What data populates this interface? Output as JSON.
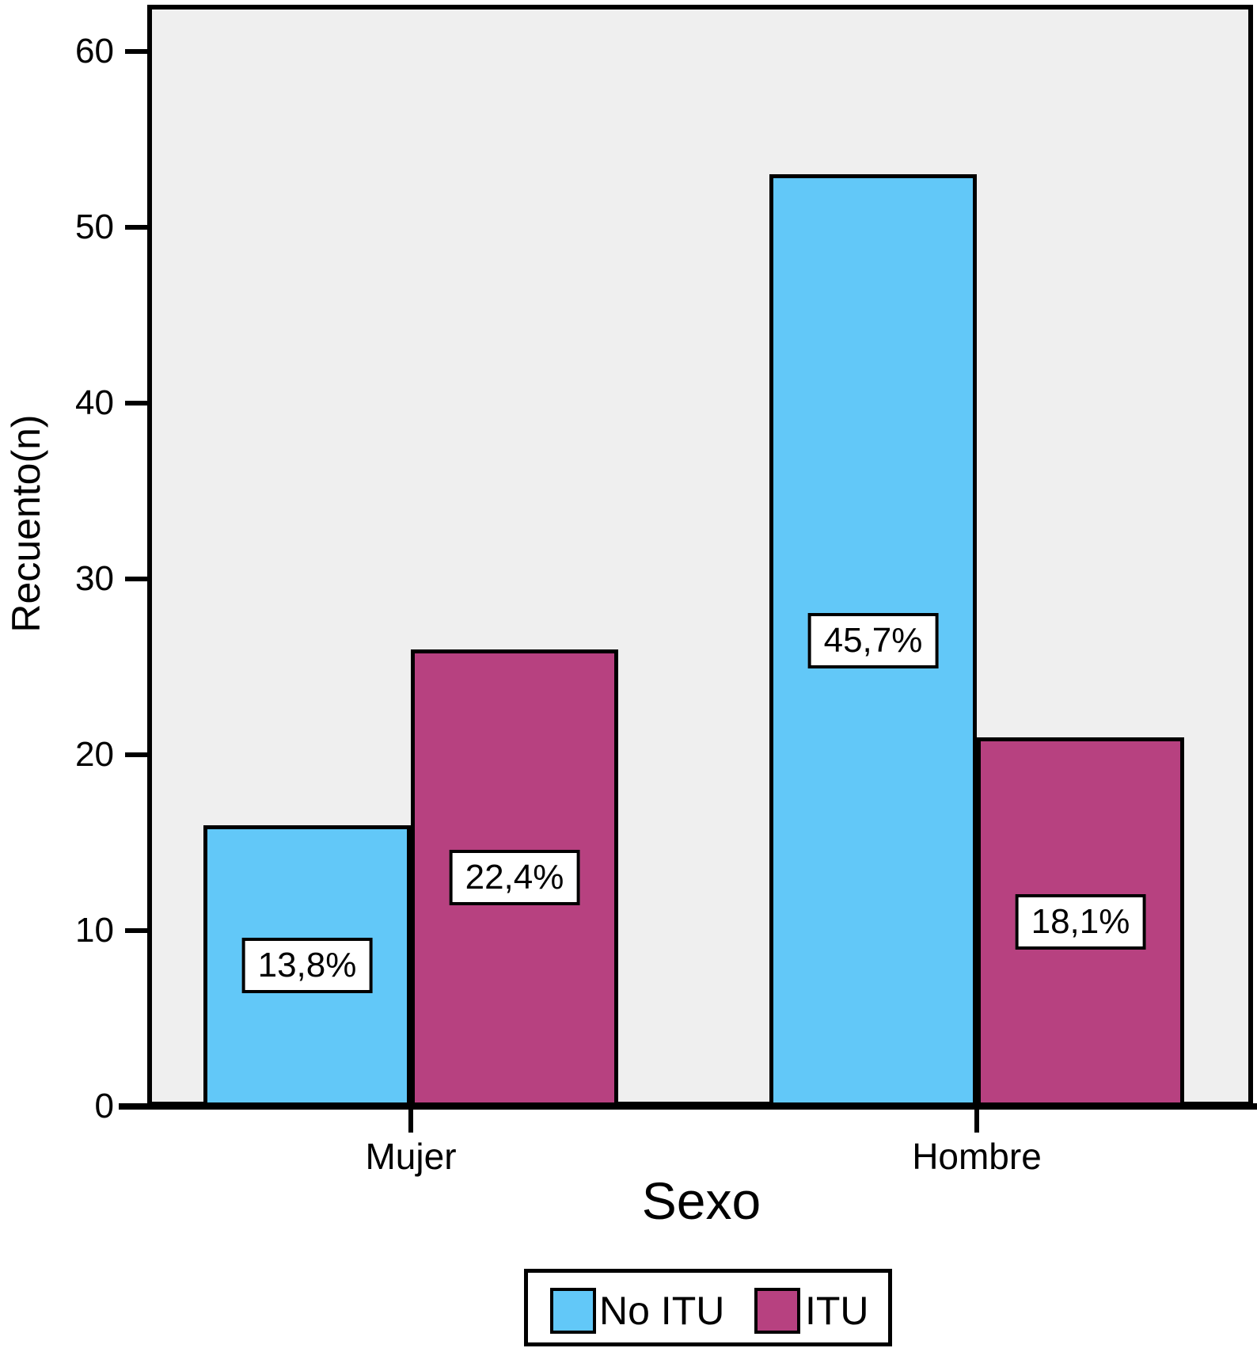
{
  "chart_data": {
    "type": "bar",
    "title": "",
    "xlabel": "Sexo",
    "ylabel": "Recuento(n)",
    "categories": [
      "Mujer",
      "Hombre"
    ],
    "series": [
      {
        "name": "No ITU",
        "color": "#62C8F8",
        "values": [
          16,
          53
        ],
        "labels": [
          "13,8%",
          "45,7%"
        ]
      },
      {
        "name": "ITU",
        "color": "#B74180",
        "values": [
          26,
          21
        ],
        "labels": [
          "22,4%",
          "18,1%"
        ]
      }
    ],
    "yticks": [
      0,
      10,
      20,
      30,
      40,
      50,
      60
    ],
    "ylim": [
      0,
      62.7
    ],
    "grid": false,
    "legend_position": "bottom",
    "plot_bg": "#EFEFEF",
    "bar_border": "#000000",
    "decimal_separator": ","
  }
}
